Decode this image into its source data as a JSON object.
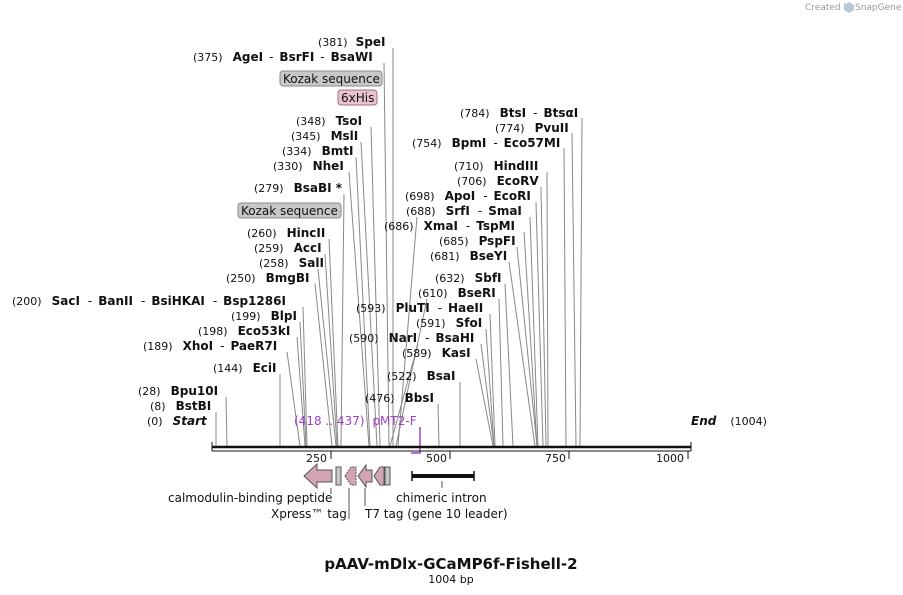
{
  "title": "pAAV-mDlx-GCaMP6f-Fishell-2",
  "length_label": "1004 bp",
  "created_by": "Created by",
  "brand": "SnapGene",
  "sequence_length": 1004,
  "ticks": [
    "250",
    "500",
    "750",
    "1000"
  ],
  "start_label": "Start",
  "end_label": "End",
  "start_pos": "(0)",
  "end_pos": "(1004)",
  "colors": {
    "feature_pink": "#d3a3b6",
    "feature_grey": "#c8c8c8",
    "primer": "#a040c8",
    "line": "#111111",
    "site_line": "#888888"
  },
  "sites": [
    {
      "pos": "(381)",
      "names": [
        "SpeI"
      ],
      "bp": 381
    },
    {
      "pos": "(375)",
      "names": [
        "AgeI",
        "BsrFI",
        "BsaWI"
      ],
      "bp": 375
    },
    {
      "pos": "(348)",
      "names": [
        "TsoI"
      ],
      "bp": 348
    },
    {
      "pos": "(345)",
      "names": [
        "MslI"
      ],
      "bp": 345
    },
    {
      "pos": "(334)",
      "names": [
        "BmtI"
      ],
      "bp": 334
    },
    {
      "pos": "(330)",
      "names": [
        "NheI"
      ],
      "bp": 330
    },
    {
      "pos": "(279)",
      "names": [
        "BsaBI *"
      ],
      "bp": 279
    },
    {
      "pos": "(260)",
      "names": [
        "HincII"
      ],
      "bp": 260
    },
    {
      "pos": "(259)",
      "names": [
        "AccI"
      ],
      "bp": 259
    },
    {
      "pos": "(258)",
      "names": [
        "SalI"
      ],
      "bp": 258
    },
    {
      "pos": "(250)",
      "names": [
        "BmgBI"
      ],
      "bp": 250
    },
    {
      "pos": "(200)",
      "names": [
        "SacI",
        "BanII",
        "BsiHKAI",
        "Bsp1286I"
      ],
      "bp": 200
    },
    {
      "pos": "(199)",
      "names": [
        "BlpI"
      ],
      "bp": 199
    },
    {
      "pos": "(198)",
      "names": [
        "Eco53kI"
      ],
      "bp": 198
    },
    {
      "pos": "(189)",
      "names": [
        "XhoI",
        "PaeR7I"
      ],
      "bp": 189
    },
    {
      "pos": "(144)",
      "names": [
        "EciI"
      ],
      "bp": 144
    },
    {
      "pos": "(28)",
      "names": [
        "Bpu10I"
      ],
      "bp": 28
    },
    {
      "pos": "(8)",
      "names": [
        "BstBI"
      ],
      "bp": 8
    },
    {
      "pos": "(784)",
      "names": [
        "BtsI",
        "BtsαI"
      ],
      "bp": 784
    },
    {
      "pos": "(774)",
      "names": [
        "PvuII"
      ],
      "bp": 774
    },
    {
      "pos": "(754)",
      "names": [
        "BpmI",
        "Eco57MI"
      ],
      "bp": 754
    },
    {
      "pos": "(710)",
      "names": [
        "HindIII"
      ],
      "bp": 710
    },
    {
      "pos": "(706)",
      "names": [
        "EcoRV"
      ],
      "bp": 706
    },
    {
      "pos": "(698)",
      "names": [
        "ApoI",
        "EcoRI"
      ],
      "bp": 698
    },
    {
      "pos": "(688)",
      "names": [
        "SrfI",
        "SmaI"
      ],
      "bp": 688
    },
    {
      "pos": "(686)",
      "names": [
        "XmaI",
        "TspMI"
      ],
      "bp": 686
    },
    {
      "pos": "(685)",
      "names": [
        "PspFI"
      ],
      "bp": 685
    },
    {
      "pos": "(681)",
      "names": [
        "BseYI"
      ],
      "bp": 681
    },
    {
      "pos": "(632)",
      "names": [
        "SbfI"
      ],
      "bp": 632
    },
    {
      "pos": "(610)",
      "names": [
        "BseRI"
      ],
      "bp": 610
    },
    {
      "pos": "(593)",
      "names": [
        "PluTI",
        "HaeII"
      ],
      "bp": 593
    },
    {
      "pos": "(591)",
      "names": [
        "SfoI"
      ],
      "bp": 591
    },
    {
      "pos": "(590)",
      "names": [
        "NarI",
        "BsaHI"
      ],
      "bp": 590
    },
    {
      "pos": "(589)",
      "names": [
        "KasI"
      ],
      "bp": 589
    },
    {
      "pos": "(522)",
      "names": [
        "BsaI"
      ],
      "bp": 522
    },
    {
      "pos": "(476)",
      "names": [
        "BbsI"
      ],
      "bp": 476
    }
  ],
  "features_above": [
    "Kozak sequence",
    "6xHis",
    "Kozak sequence"
  ],
  "features_below": [
    "calmodulin-binding peptide",
    "Xpress™ tag",
    "T7 tag (gene 10 leader)",
    "chimeric intron"
  ],
  "primer": {
    "range": "(418 .. 437)",
    "name": "pMT2-F"
  }
}
